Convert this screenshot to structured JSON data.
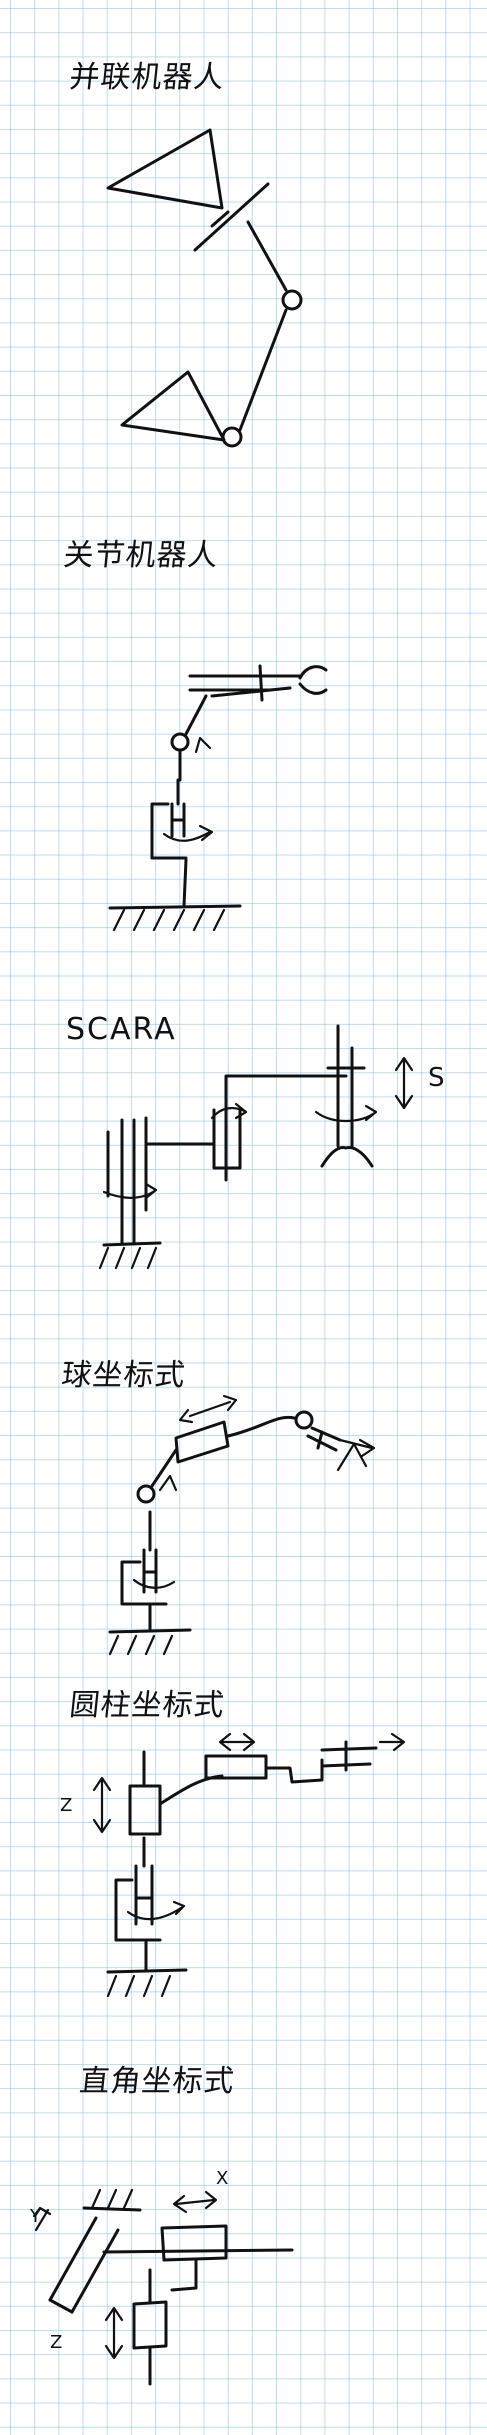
{
  "sections": [
    {
      "id": "parallel",
      "title": "并联机器人"
    },
    {
      "id": "articulated",
      "title": "关节机器人"
    },
    {
      "id": "scara",
      "title": "SCARA",
      "axis_label": "S"
    },
    {
      "id": "spherical",
      "title": "球坐标式"
    },
    {
      "id": "cylindrical",
      "title": "圆柱坐标式",
      "axis_label": "Z"
    },
    {
      "id": "cartesian",
      "title": "直角坐标式",
      "axis_labels": {
        "x": "X",
        "y": "Y",
        "z": "Z"
      }
    }
  ],
  "colors": {
    "ink": "#111111",
    "grid": "#87bee1",
    "paper": "#ffffff"
  }
}
